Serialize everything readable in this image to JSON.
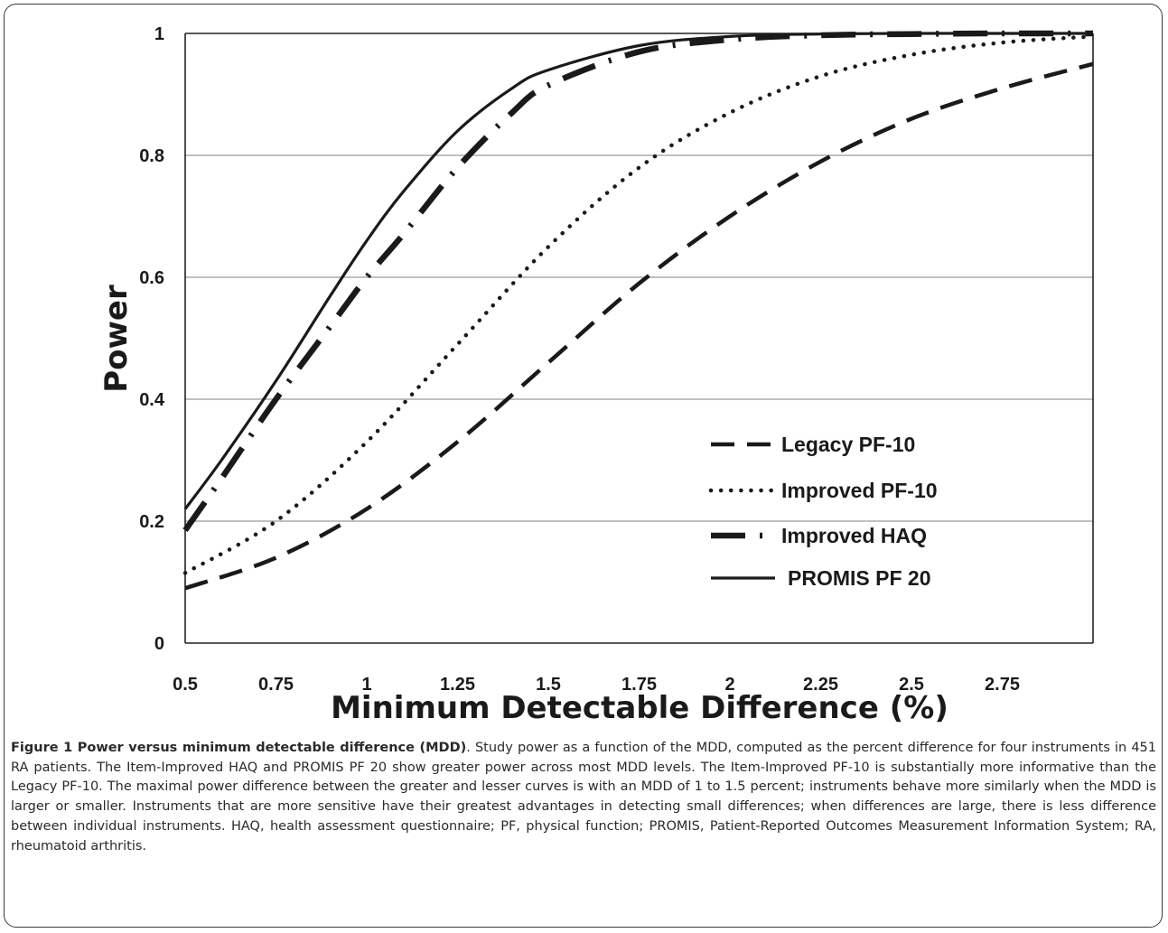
{
  "chart_data": {
    "type": "line",
    "title": "",
    "xlabel": "Minimum Detectable Difference (%)",
    "ylabel": "Power",
    "xlim": [
      0.5,
      3.0
    ],
    "ylim": [
      0,
      1
    ],
    "x_ticks": [
      "0.5",
      "0.75",
      "1",
      "1.25",
      "1.5",
      "1.75",
      "2",
      "2.25",
      "2.5",
      "2.75"
    ],
    "y_ticks": [
      "0",
      "0.2",
      "0.4",
      "0.6",
      "0.8",
      "1"
    ],
    "grid": "horizontal",
    "legend_position": "center-right",
    "series": [
      {
        "name": "Legacy PF-10",
        "style": "dashed",
        "x": [
          0.5,
          0.75,
          1.0,
          1.25,
          1.5,
          1.75,
          2.0,
          2.25,
          2.5,
          2.75,
          3.0
        ],
        "values": [
          0.09,
          0.14,
          0.22,
          0.33,
          0.46,
          0.59,
          0.7,
          0.79,
          0.86,
          0.91,
          0.95
        ]
      },
      {
        "name": "Improved PF-10",
        "style": "dotted",
        "x": [
          0.5,
          0.75,
          1.0,
          1.25,
          1.5,
          1.75,
          2.0,
          2.25,
          2.5,
          2.75,
          3.0
        ],
        "values": [
          0.115,
          0.2,
          0.33,
          0.49,
          0.65,
          0.78,
          0.87,
          0.93,
          0.965,
          0.985,
          0.995
        ]
      },
      {
        "name": "Improved HAQ",
        "style": "dash-dot",
        "x": [
          0.5,
          0.6,
          0.75,
          0.9,
          1.0,
          1.1,
          1.25,
          1.4,
          1.5,
          1.75,
          2.0,
          2.25,
          2.5,
          2.75,
          3.0
        ],
        "values": [
          0.185,
          0.27,
          0.4,
          0.52,
          0.6,
          0.67,
          0.78,
          0.87,
          0.915,
          0.97,
          0.99,
          0.997,
          0.999,
          1.0,
          1.0
        ]
      },
      {
        "name": "PROMIS PF 20",
        "style": "solid",
        "x": [
          0.5,
          0.6,
          0.75,
          0.9,
          1.0,
          1.1,
          1.25,
          1.4,
          1.5,
          1.75,
          2.0,
          2.25,
          2.5,
          2.75,
          3.0
        ],
        "values": [
          0.22,
          0.3,
          0.43,
          0.57,
          0.66,
          0.74,
          0.84,
          0.91,
          0.94,
          0.98,
          0.995,
          0.999,
          1.0,
          1.0,
          1.0
        ]
      }
    ]
  },
  "caption": {
    "title": "Figure 1 Power versus minimum detectable difference (MDD)",
    "body": ". Study power as a function of the MDD, computed as the percent difference for four instruments in 451 RA patients. The Item-Improved HAQ and PROMIS PF 20 show greater power across most MDD levels. The Item-Improved PF-10 is substantially more informative than the Legacy PF-10. The maximal power difference between the greater and lesser curves is with an MDD of 1 to 1.5 percent; instruments behave more similarly when the MDD is larger or smaller. Instruments that are more sensitive have their greatest advantages in detecting small differences; when differences are large, there is less difference between individual instruments. HAQ, health assessment questionnaire; PF, physical function; PROMIS, Patient-Reported Outcomes Measurement Information System; RA, rheumatoid arthritis."
  }
}
